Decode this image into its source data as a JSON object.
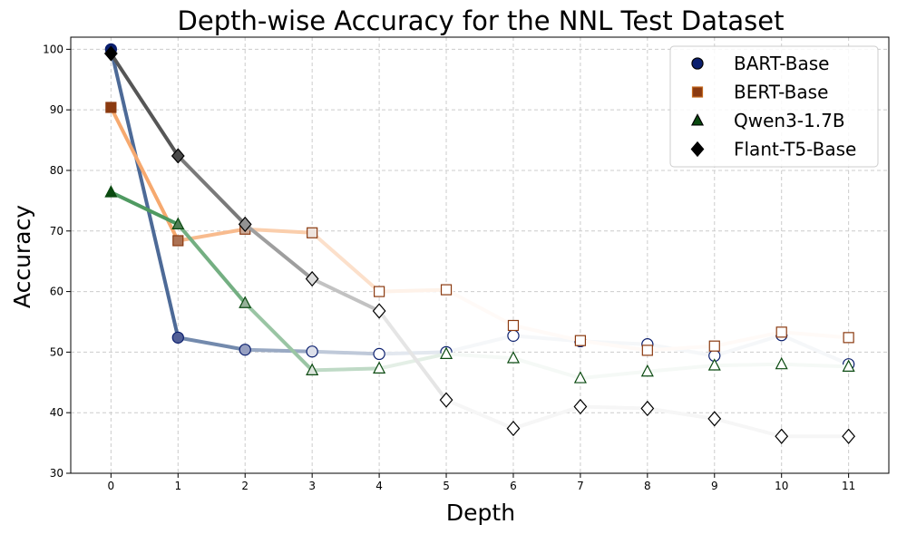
{
  "chart_data": {
    "type": "line",
    "title": "Depth-wise Accuracy for the NNL Test Dataset",
    "xlabel": "Depth",
    "ylabel": "Accuracy",
    "x": [
      0,
      1,
      2,
      3,
      4,
      5,
      6,
      7,
      8,
      9,
      10,
      11
    ],
    "xlim": [
      -0.6,
      11.6
    ],
    "ylim": [
      30,
      102
    ],
    "yticks": [
      30,
      40,
      50,
      60,
      70,
      80,
      90,
      100
    ],
    "grid": true,
    "legend_position": "top-right",
    "series": [
      {
        "name": "BART-Base",
        "marker": "circle",
        "color": "#3a5a8c",
        "marker_color": "#0b1f6e",
        "values": [
          100.0,
          52.4,
          50.4,
          50.1,
          49.7,
          50.0,
          52.7,
          51.8,
          51.3,
          49.4,
          52.8,
          48.0
        ]
      },
      {
        "name": "BERT-Base",
        "marker": "square",
        "color": "#f5a060",
        "marker_color": "#8b3a10",
        "values": [
          90.4,
          68.4,
          70.3,
          69.7,
          60.0,
          60.3,
          54.4,
          51.9,
          50.3,
          51.0,
          53.3,
          52.4
        ]
      },
      {
        "name": "Qwen3-1.7B",
        "marker": "triangle",
        "color": "#3c8f50",
        "marker_color": "#0a4a10",
        "values": [
          76.4,
          71.1,
          58.1,
          47.0,
          47.3,
          49.7,
          49.0,
          45.7,
          46.8,
          47.8,
          48.0,
          47.6
        ]
      },
      {
        "name": "Flant-T5-Base",
        "marker": "diamond",
        "color": "#444444",
        "marker_color": "#000000",
        "values": [
          99.3,
          82.4,
          71.1,
          62.1,
          56.8,
          42.1,
          37.4,
          41.0,
          40.7,
          39.0,
          36.1,
          36.1
        ]
      }
    ]
  }
}
